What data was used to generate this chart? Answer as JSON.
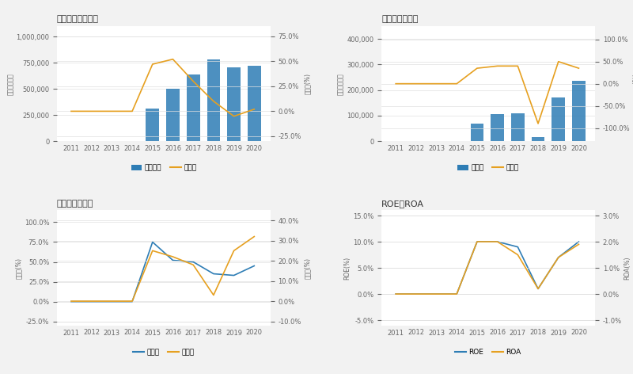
{
  "years": [
    2011,
    2012,
    2013,
    2014,
    2015,
    2016,
    2017,
    2018,
    2019,
    2020
  ],
  "revenue": [
    null,
    null,
    null,
    null,
    310000,
    500000,
    640000,
    780000,
    710000,
    720000
  ],
  "revenue_growth": [
    0.0,
    0.0,
    0.0,
    0.0,
    47.0,
    52.0,
    30.0,
    10.0,
    -5.0,
    2.0
  ],
  "net_profit": [
    null,
    null,
    null,
    null,
    70000,
    107000,
    110000,
    15000,
    172000,
    235000
  ],
  "net_profit_growth": [
    0.0,
    0.0,
    0.0,
    0.0,
    35.0,
    40.0,
    40.0,
    -90.0,
    50.0,
    35.0
  ],
  "gross_margin": [
    0.0,
    0.0,
    0.0,
    0.0,
    75.0,
    52.0,
    50.0,
    35.0,
    33.0,
    45.0
  ],
  "net_margin": [
    0.0,
    0.0,
    0.0,
    0.0,
    25.0,
    22.0,
    18.0,
    3.0,
    25.0,
    32.0
  ],
  "roe": [
    0.0,
    0.0,
    0.0,
    0.0,
    10.0,
    10.0,
    9.0,
    1.0,
    7.0,
    10.0
  ],
  "roa": [
    0.0,
    0.0,
    0.0,
    0.0,
    2.0,
    2.0,
    1.5,
    0.2,
    1.4,
    1.9
  ],
  "bar_color": "#2e7db5",
  "line_color1": "#e6a020",
  "line_color2": "#2e7db5",
  "bg_color": "#f2f2f2",
  "plot_bg": "#ffffff",
  "grid_color": "#e0e0e0",
  "title1": "收入规模及增长率",
  "title2": "净利润及增长率",
  "title3": "毛利率与净利率",
  "title4": "ROE与ROA",
  "legend1_bar": "营业收入",
  "legend1_line": "增长率",
  "legend2_bar": "净利润",
  "legend2_line": "增长率",
  "legend3_line1": "毛利率",
  "legend3_line2": "净利率",
  "legend4_line1": "ROE",
  "legend4_line2": "ROA",
  "ylabel1_left": "数额（万元）",
  "ylabel1_right": "增长率(%)",
  "ylabel2_left": "数额（万元）",
  "ylabel2_right": "增长率(%)",
  "ylabel3_left": "毛利率(%)",
  "ylabel3_right": "净利率(%)",
  "ylabel4_left": "ROE(%)",
  "ylabel4_right": "ROA(%)"
}
